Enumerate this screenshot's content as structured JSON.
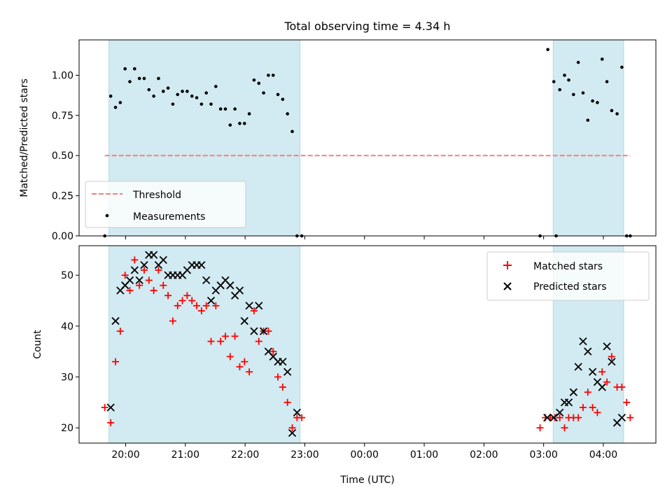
{
  "figure": {
    "title": "Total observing time = 4.34 h",
    "xlabel": "Time (UTC)",
    "x_ticks": [
      "20:00",
      "21:00",
      "22:00",
      "23:00",
      "00:00",
      "01:00",
      "02:00",
      "03:00",
      "04:00"
    ]
  },
  "chart_data": [
    {
      "type": "scatter",
      "title": "Total observing time = 4.34 h",
      "xlabel": "",
      "ylabel": "Matched/Predicted stars",
      "x_unit": "hours since 19:00 UTC",
      "xlim": [
        0.22,
        9.88
      ],
      "ylim": [
        0,
        1.22
      ],
      "y_ticks": [
        0.0,
        0.25,
        0.5,
        0.75,
        1.0
      ],
      "y_tick_labels": [
        "0.00",
        "0.25",
        "0.50",
        "0.75",
        "1.00"
      ],
      "observing_windows": [
        [
          0.72,
          3.92
        ],
        [
          8.16,
          9.34
        ]
      ],
      "window_color": "#add8e6",
      "grid": false,
      "legend_position": "lower-left",
      "series": [
        {
          "name": "Threshold",
          "kind": "line",
          "style": "dashed",
          "color": "#f08080",
          "x": [
            0.65,
            9.45
          ],
          "y": [
            0.5,
            0.5
          ]
        },
        {
          "name": "Measurements",
          "kind": "scatter",
          "marker": "dot",
          "color": "#000000",
          "x": [
            0.65,
            0.75,
            0.83,
            0.91,
            0.99,
            1.07,
            1.15,
            1.23,
            1.31,
            1.39,
            1.47,
            1.55,
            1.63,
            1.71,
            1.79,
            1.87,
            1.95,
            2.03,
            2.11,
            2.19,
            2.27,
            2.35,
            2.43,
            2.51,
            2.59,
            2.67,
            2.75,
            2.83,
            2.91,
            2.99,
            3.07,
            3.15,
            3.23,
            3.31,
            3.39,
            3.47,
            3.55,
            3.63,
            3.71,
            3.79,
            3.87,
            3.95,
            7.94,
            8.07,
            8.21,
            8.17,
            8.27,
            8.35,
            8.42,
            8.5,
            8.58,
            8.66,
            8.74,
            8.82,
            8.9,
            8.98,
            9.06,
            9.14,
            9.23,
            9.31,
            9.39,
            9.45
          ],
          "y": [
            0.0,
            0.87,
            0.8,
            0.83,
            1.04,
            0.96,
            1.04,
            0.98,
            0.98,
            0.91,
            0.87,
            0.98,
            0.9,
            0.92,
            0.82,
            0.88,
            0.9,
            0.9,
            0.87,
            0.86,
            0.82,
            0.89,
            0.82,
            0.93,
            0.79,
            0.79,
            0.69,
            0.79,
            0.7,
            0.7,
            0.76,
            0.97,
            0.95,
            0.89,
            1.0,
            1.0,
            0.88,
            0.85,
            0.76,
            0.65,
            0.0,
            0.0,
            0.0,
            1.16,
            0.0,
            0.96,
            0.91,
            1.0,
            0.97,
            0.88,
            1.08,
            0.89,
            0.72,
            0.84,
            0.83,
            1.1,
            0.96,
            0.78,
            0.76,
            1.05,
            0.0,
            0.0
          ]
        }
      ]
    },
    {
      "type": "scatter",
      "title": "",
      "xlabel": "Time (UTC)",
      "ylabel": "Count",
      "x_unit": "hours since 19:00 UTC",
      "xlim": [
        0.22,
        9.88
      ],
      "ylim": [
        17.0,
        55.8
      ],
      "y_ticks": [
        20,
        30,
        40,
        50
      ],
      "y_tick_labels": [
        "20",
        "30",
        "40",
        "50"
      ],
      "observing_windows": [
        [
          0.72,
          3.92
        ],
        [
          8.16,
          9.34
        ]
      ],
      "window_color": "#add8e6",
      "grid": false,
      "legend_position": "upper-right",
      "series": [
        {
          "name": "Matched stars",
          "marker": "plus",
          "color": "#ff0000",
          "x": [
            0.65,
            0.75,
            0.83,
            0.91,
            0.99,
            1.07,
            1.15,
            1.23,
            1.31,
            1.39,
            1.47,
            1.55,
            1.63,
            1.71,
            1.79,
            1.87,
            1.95,
            2.03,
            2.11,
            2.19,
            2.27,
            2.35,
            2.43,
            2.51,
            2.59,
            2.67,
            2.75,
            2.83,
            2.91,
            2.99,
            3.07,
            3.15,
            3.23,
            3.31,
            3.39,
            3.47,
            3.55,
            3.63,
            3.71,
            3.79,
            3.87,
            3.95,
            7.94,
            8.03,
            8.11,
            8.19,
            8.27,
            8.35,
            8.42,
            8.5,
            8.58,
            8.66,
            8.74,
            8.82,
            8.9,
            8.98,
            9.06,
            9.14,
            9.23,
            9.31,
            9.39,
            9.45
          ],
          "y": [
            24,
            21,
            33,
            39,
            50,
            47,
            53,
            48,
            51,
            49,
            47,
            51,
            48,
            46,
            41,
            44,
            45,
            46,
            45,
            44,
            43,
            44,
            37,
            44,
            37,
            38,
            34,
            38,
            32,
            33,
            31,
            43,
            37,
            39,
            39,
            35,
            30,
            28,
            25,
            20,
            22,
            22,
            20,
            22,
            22,
            22,
            22,
            20,
            22,
            22,
            22,
            24,
            27,
            24,
            23,
            31,
            29,
            34,
            28,
            28,
            25,
            22
          ]
        },
        {
          "name": "Predicted stars",
          "marker": "x",
          "color": "#000000",
          "x": [
            0.75,
            0.83,
            0.91,
            0.99,
            1.07,
            1.15,
            1.23,
            1.31,
            1.39,
            1.47,
            1.55,
            1.63,
            1.71,
            1.79,
            1.87,
            1.95,
            2.03,
            2.11,
            2.19,
            2.27,
            2.35,
            2.43,
            2.51,
            2.59,
            2.67,
            2.75,
            2.83,
            2.91,
            2.99,
            3.07,
            3.15,
            3.23,
            3.31,
            3.39,
            3.47,
            3.55,
            3.63,
            3.71,
            3.79,
            3.87,
            8.06,
            8.17,
            8.27,
            8.35,
            8.42,
            8.5,
            8.58,
            8.66,
            8.74,
            8.82,
            8.9,
            8.98,
            9.06,
            9.14,
            9.23,
            9.31
          ],
          "y": [
            24,
            41,
            47,
            48,
            49,
            51,
            49,
            52,
            54,
            54,
            52,
            53,
            50,
            50,
            50,
            50,
            51,
            52,
            52,
            52,
            49,
            45,
            47,
            48,
            49,
            48,
            46,
            47,
            41,
            44,
            39,
            44,
            39,
            35,
            34,
            33,
            33,
            31,
            19,
            23,
            22,
            22,
            23,
            25,
            25,
            27,
            32,
            37,
            35,
            31,
            29,
            28,
            36,
            33,
            21,
            22
          ]
        }
      ]
    }
  ]
}
